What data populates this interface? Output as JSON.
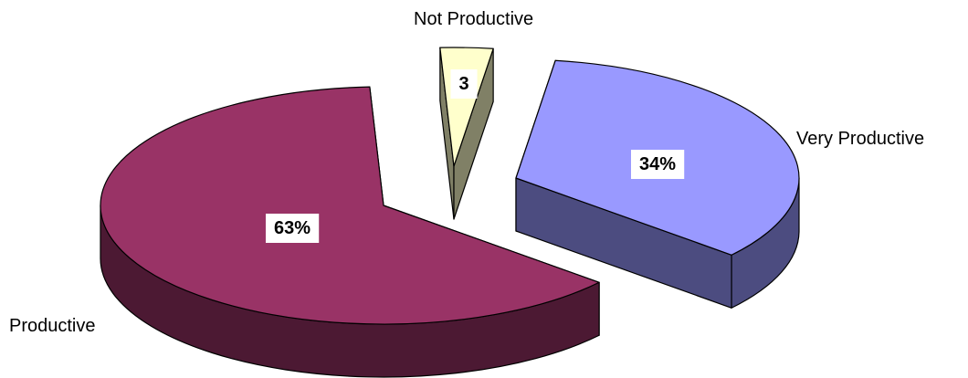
{
  "chart_data": {
    "type": "pie",
    "style": "3d-exploded",
    "categories": [
      "Very Productive",
      "Productive",
      "Not Productive"
    ],
    "values": [
      34,
      63,
      3
    ],
    "data_labels": [
      "34%",
      "63%",
      "3"
    ],
    "colors": {
      "Very Productive": {
        "top": "#9999ff",
        "side": "#4c4c80"
      },
      "Productive": {
        "top": "#993366",
        "side": "#4c1933"
      },
      "Not Productive": {
        "top": "#ffffcc",
        "side": "#808066"
      }
    },
    "legend": "none"
  }
}
